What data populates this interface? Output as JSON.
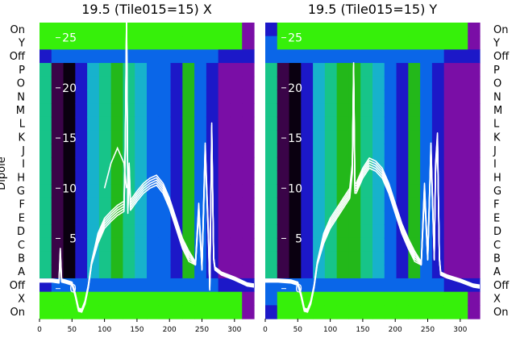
{
  "chart_data": {
    "type": "heatmap",
    "ylabel": "Dipole",
    "row_labels": [
      "On",
      "Y",
      "Off",
      "P",
      "O",
      "N",
      "M",
      "L",
      "K",
      "J",
      "I",
      "H",
      "G",
      "F",
      "E",
      "D",
      "C",
      "B",
      "A",
      "Off",
      "X",
      "On"
    ],
    "x_ticks": [
      0,
      50,
      100,
      150,
      200,
      250,
      300
    ],
    "xlim": [
      0,
      330
    ],
    "overlay_ticks": [
      0,
      5,
      10,
      15,
      20,
      25
    ],
    "overlay_ylim": [
      -3,
      26.5
    ],
    "colormap": [
      "#7a0ea6",
      "#3a0448",
      "#0a0010",
      "#1c18c8",
      "#0a66e8",
      "#17b2cc",
      "#17c489",
      "#23b81a",
      "#36f00a"
    ],
    "panels": [
      {
        "title": "19.5 (Tile015=15) X",
        "line_color": "#ffffff",
        "trace": {
          "x": [
            0,
            20,
            30,
            32,
            34,
            40,
            50,
            55,
            60,
            65,
            70,
            75,
            80,
            90,
            100,
            110,
            120,
            125,
            130,
            132,
            134,
            136,
            138,
            140,
            150,
            160,
            170,
            180,
            190,
            200,
            210,
            220,
            230,
            240,
            245,
            250,
            255,
            260,
            262,
            265,
            268,
            270,
            280,
            300,
            320,
            330
          ],
          "y": [
            0.8,
            0.8,
            0.7,
            3.5,
            0.8,
            0.7,
            0.5,
            -0.6,
            -2.1,
            -2.2,
            -1.4,
            0.2,
            2.5,
            5,
            6.5,
            7.2,
            7.8,
            8,
            8.2,
            14,
            27,
            8,
            12,
            8.3,
            9.2,
            10,
            10.5,
            10.8,
            10,
            8.5,
            6.5,
            4.5,
            3.2,
            2.5,
            8,
            2,
            14,
            5,
            0,
            16,
            3,
            2,
            1.5,
            1,
            0.4,
            0.3
          ]
        },
        "extra_trace": {
          "x": [
            100,
            110,
            120,
            130,
            134
          ],
          "y": [
            10,
            12.5,
            14,
            12.5,
            10
          ]
        },
        "columns": [
          [
            8,
            8,
            3,
            6,
            6,
            6,
            6,
            6,
            6,
            6,
            6,
            6,
            6,
            6,
            6,
            6,
            6,
            6,
            6,
            3,
            8,
            8
          ],
          [
            8,
            8,
            4,
            1,
            1,
            1,
            1,
            1,
            1,
            1,
            1,
            1,
            1,
            1,
            1,
            1,
            1,
            1,
            1,
            4,
            8,
            8
          ],
          [
            8,
            8,
            4,
            2,
            2,
            2,
            2,
            2,
            2,
            2,
            2,
            2,
            2,
            2,
            2,
            2,
            2,
            2,
            2,
            4,
            8,
            8
          ],
          [
            8,
            8,
            4,
            3,
            3,
            3,
            3,
            3,
            3,
            3,
            3,
            3,
            3,
            3,
            3,
            3,
            3,
            3,
            3,
            4,
            8,
            8
          ],
          [
            8,
            8,
            4,
            5,
            5,
            5,
            5,
            5,
            5,
            5,
            5,
            5,
            5,
            5,
            5,
            5,
            5,
            5,
            5,
            4,
            8,
            8
          ],
          [
            8,
            8,
            4,
            6,
            6,
            6,
            6,
            6,
            6,
            6,
            6,
            6,
            6,
            6,
            6,
            6,
            6,
            6,
            6,
            4,
            8,
            8
          ],
          [
            8,
            8,
            4,
            7,
            7,
            7,
            7,
            7,
            7,
            7,
            7,
            7,
            7,
            7,
            7,
            7,
            7,
            7,
            7,
            4,
            8,
            8
          ],
          [
            8,
            8,
            4,
            6,
            6,
            6,
            6,
            6,
            6,
            6,
            6,
            6,
            6,
            6,
            6,
            6,
            6,
            6,
            6,
            4,
            8,
            8
          ],
          [
            8,
            8,
            4,
            5,
            5,
            5,
            5,
            5,
            5,
            5,
            5,
            5,
            5,
            5,
            5,
            5,
            5,
            5,
            5,
            4,
            8,
            8
          ],
          [
            8,
            8,
            4,
            4,
            4,
            4,
            4,
            4,
            4,
            4,
            4,
            4,
            4,
            4,
            4,
            4,
            4,
            4,
            4,
            4,
            8,
            8
          ],
          [
            8,
            8,
            4,
            4,
            4,
            4,
            4,
            4,
            4,
            4,
            4,
            4,
            4,
            4,
            4,
            4,
            4,
            4,
            4,
            4,
            8,
            8
          ],
          [
            8,
            8,
            4,
            3,
            3,
            3,
            3,
            3,
            3,
            3,
            3,
            3,
            3,
            3,
            3,
            3,
            3,
            3,
            3,
            4,
            8,
            8
          ],
          [
            8,
            8,
            4,
            7,
            7,
            7,
            7,
            7,
            7,
            7,
            7,
            7,
            7,
            7,
            7,
            7,
            7,
            7,
            7,
            4,
            8,
            8
          ],
          [
            8,
            8,
            4,
            4,
            4,
            4,
            4,
            4,
            4,
            4,
            4,
            4,
            4,
            4,
            4,
            4,
            4,
            4,
            4,
            4,
            8,
            8
          ],
          [
            8,
            8,
            4,
            3,
            3,
            3,
            3,
            3,
            3,
            3,
            3,
            3,
            3,
            3,
            3,
            3,
            3,
            3,
            3,
            4,
            8,
            8
          ],
          [
            8,
            8,
            3,
            0,
            0,
            0,
            0,
            0,
            0,
            0,
            0,
            0,
            0,
            0,
            0,
            0,
            0,
            0,
            0,
            3,
            8,
            8
          ],
          [
            8,
            8,
            3,
            0,
            0,
            0,
            0,
            0,
            0,
            0,
            0,
            0,
            0,
            0,
            0,
            0,
            0,
            0,
            0,
            3,
            8,
            8
          ],
          [
            0,
            0,
            3,
            0,
            0,
            0,
            0,
            0,
            0,
            0,
            0,
            0,
            0,
            0,
            0,
            0,
            0,
            0,
            0,
            3,
            0,
            0
          ]
        ]
      },
      {
        "title": "19.5 (Tile015=15) Y",
        "line_color": "#ffffff",
        "trace": {
          "x": [
            0,
            20,
            40,
            50,
            55,
            60,
            65,
            70,
            75,
            80,
            90,
            100,
            110,
            120,
            130,
            134,
            136,
            138,
            140,
            150,
            160,
            170,
            180,
            190,
            200,
            210,
            220,
            230,
            240,
            245,
            250,
            255,
            260,
            262,
            265,
            268,
            270,
            280,
            300,
            320,
            330
          ],
          "y": [
            0.8,
            0.8,
            0.7,
            0.5,
            -0.6,
            -2.1,
            -2.2,
            -1.4,
            0.2,
            2.5,
            5,
            6.5,
            7.5,
            8.5,
            9.5,
            12,
            22,
            10,
            10,
            11.5,
            12.5,
            12.2,
            11.5,
            10,
            8,
            6,
            4.5,
            3.2,
            2.5,
            10,
            3,
            14,
            3,
            12,
            15,
            3,
            1.5,
            1.2,
            0.8,
            0.3,
            0.2
          ]
        },
        "extra_trace": {
          "x": [],
          "y": []
        },
        "columns": [
          [
            3,
            4,
            4,
            6,
            6,
            6,
            6,
            6,
            6,
            6,
            6,
            6,
            6,
            6,
            6,
            6,
            6,
            6,
            6,
            4,
            4,
            3
          ],
          [
            8,
            8,
            4,
            1,
            1,
            1,
            1,
            1,
            1,
            1,
            1,
            1,
            1,
            1,
            1,
            1,
            1,
            1,
            1,
            4,
            8,
            8
          ],
          [
            8,
            8,
            4,
            2,
            2,
            2,
            2,
            2,
            2,
            2,
            2,
            2,
            2,
            2,
            2,
            2,
            2,
            2,
            2,
            4,
            8,
            8
          ],
          [
            8,
            8,
            4,
            3,
            3,
            3,
            3,
            3,
            3,
            3,
            3,
            3,
            3,
            3,
            3,
            3,
            3,
            3,
            3,
            4,
            8,
            8
          ],
          [
            8,
            8,
            4,
            5,
            5,
            5,
            5,
            5,
            5,
            5,
            5,
            5,
            5,
            5,
            5,
            5,
            5,
            5,
            5,
            4,
            8,
            8
          ],
          [
            8,
            8,
            4,
            6,
            6,
            6,
            6,
            6,
            6,
            6,
            6,
            6,
            6,
            6,
            6,
            6,
            6,
            6,
            6,
            4,
            8,
            8
          ],
          [
            8,
            8,
            4,
            7,
            7,
            7,
            7,
            7,
            7,
            7,
            7,
            7,
            7,
            7,
            7,
            7,
            7,
            7,
            7,
            4,
            8,
            8
          ],
          [
            8,
            8,
            4,
            7,
            7,
            7,
            7,
            7,
            7,
            7,
            7,
            7,
            7,
            7,
            7,
            7,
            7,
            7,
            7,
            4,
            8,
            8
          ],
          [
            8,
            8,
            4,
            6,
            6,
            6,
            6,
            6,
            6,
            6,
            6,
            6,
            6,
            6,
            6,
            6,
            6,
            6,
            6,
            4,
            8,
            8
          ],
          [
            8,
            8,
            4,
            5,
            5,
            5,
            5,
            5,
            5,
            5,
            5,
            5,
            5,
            5,
            5,
            5,
            5,
            5,
            5,
            4,
            8,
            8
          ],
          [
            8,
            8,
            4,
            4,
            4,
            4,
            4,
            4,
            4,
            4,
            4,
            4,
            4,
            4,
            4,
            4,
            4,
            4,
            4,
            4,
            8,
            8
          ],
          [
            8,
            8,
            4,
            3,
            3,
            3,
            3,
            3,
            3,
            3,
            3,
            3,
            3,
            3,
            3,
            3,
            3,
            3,
            3,
            4,
            8,
            8
          ],
          [
            8,
            8,
            4,
            7,
            7,
            7,
            7,
            7,
            7,
            7,
            7,
            7,
            7,
            7,
            7,
            7,
            7,
            7,
            7,
            4,
            8,
            8
          ],
          [
            8,
            8,
            4,
            4,
            4,
            4,
            4,
            4,
            4,
            4,
            4,
            4,
            4,
            4,
            4,
            4,
            4,
            4,
            4,
            4,
            8,
            8
          ],
          [
            8,
            8,
            4,
            3,
            3,
            3,
            3,
            3,
            3,
            3,
            3,
            3,
            3,
            3,
            3,
            3,
            3,
            3,
            3,
            4,
            8,
            8
          ],
          [
            8,
            8,
            3,
            0,
            0,
            0,
            0,
            0,
            0,
            0,
            0,
            0,
            0,
            0,
            0,
            0,
            0,
            0,
            0,
            3,
            8,
            8
          ],
          [
            8,
            8,
            3,
            0,
            0,
            0,
            0,
            0,
            0,
            0,
            0,
            0,
            0,
            0,
            0,
            0,
            0,
            0,
            0,
            3,
            8,
            8
          ],
          [
            0,
            0,
            3,
            0,
            0,
            0,
            0,
            0,
            0,
            0,
            0,
            0,
            0,
            0,
            0,
            0,
            0,
            0,
            0,
            3,
            0,
            0
          ]
        ]
      }
    ]
  }
}
